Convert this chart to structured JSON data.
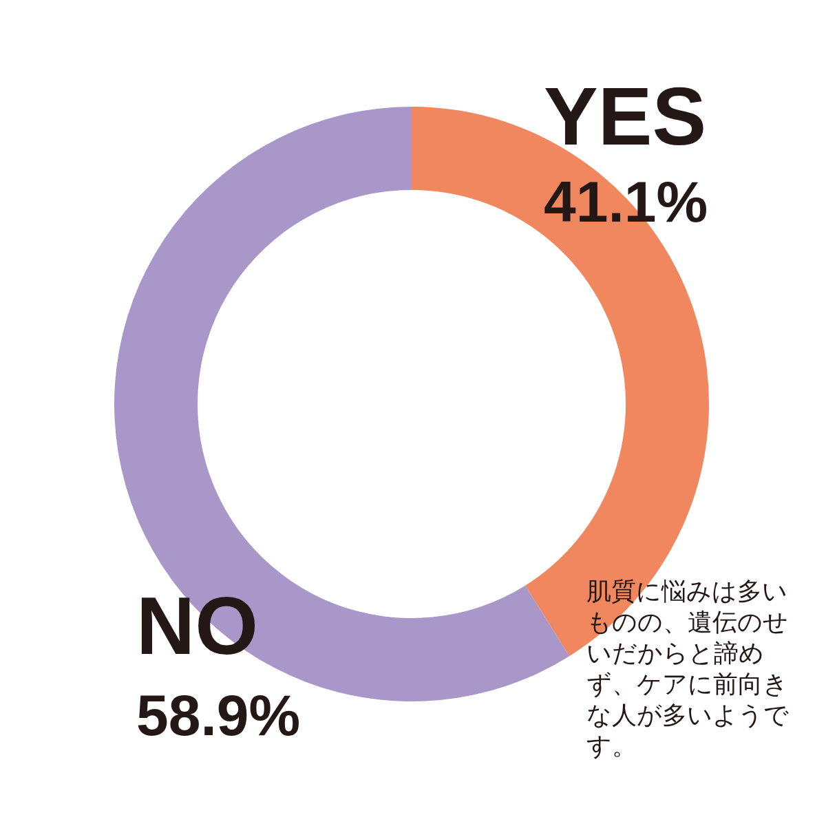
{
  "chart_data": {
    "type": "donut",
    "categories": [
      "YES",
      "NO"
    ],
    "values": [
      41.1,
      58.9
    ],
    "colors": [
      "#f0875e",
      "#a897c8"
    ],
    "value_labels": [
      "41.1%",
      "58.9%"
    ],
    "legend": false,
    "annotations": [
      "肌質に悩みは多いものの、遺伝のせいだからと諦めず、ケアに前向きな人が多いようです。"
    ]
  }
}
